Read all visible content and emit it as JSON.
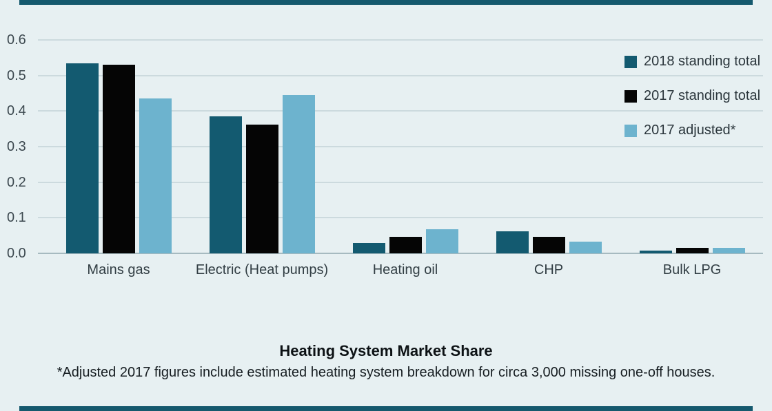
{
  "page": {
    "background": "#e7f0f2",
    "accent_bar_color": "#15596e"
  },
  "chart_data": {
    "type": "bar",
    "title": "Heating System Market Share",
    "footnote": "*Adjusted 2017 figures include estimated heating system breakdown for circa 3,000 missing one-off houses.",
    "categories": [
      "Mains gas",
      "Electric (Heat pumps)",
      "Heating oil",
      "CHP",
      "Bulk LPG"
    ],
    "series": [
      {
        "name": "2018 standing total",
        "color": "#135a70",
        "values": [
          0.535,
          0.386,
          0.029,
          0.062,
          0.008
        ]
      },
      {
        "name": "2017 standing total",
        "color": "#050505",
        "values": [
          0.53,
          0.362,
          0.047,
          0.047,
          0.016
        ]
      },
      {
        "name": "2017 adjusted*",
        "color": "#6db3ce",
        "values": [
          0.435,
          0.445,
          0.068,
          0.032,
          0.015
        ]
      }
    ],
    "xlabel": "",
    "ylabel": "",
    "ylim": [
      0,
      0.6
    ],
    "yticks": [
      "0.0",
      "0.1",
      "0.2",
      "0.3",
      "0.4",
      "0.5",
      "0.6"
    ],
    "grid": true,
    "legend_position": "top-right"
  }
}
